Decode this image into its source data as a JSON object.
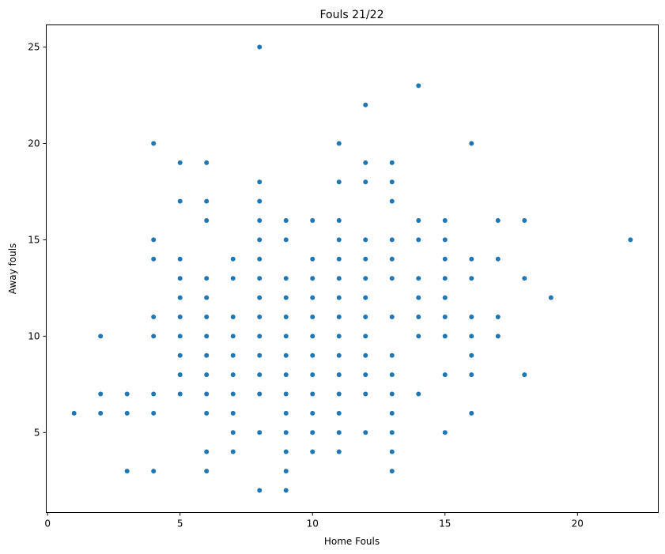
{
  "chart_data": {
    "type": "scatter",
    "title": "Fouls 21/22",
    "xlabel": "Home Fouls",
    "ylabel": "Away fouls",
    "xlim": [
      -0.05,
      23.05
    ],
    "ylim": [
      0.85,
      26.15
    ],
    "xticks": [
      0,
      5,
      10,
      15,
      20
    ],
    "yticks": [
      5,
      10,
      15,
      20,
      25
    ],
    "grid": false,
    "marker_color": "#1f77b4",
    "points": [
      [
        1,
        6
      ],
      [
        2,
        10
      ],
      [
        2,
        7
      ],
      [
        2,
        6
      ],
      [
        3,
        7
      ],
      [
        3,
        6
      ],
      [
        3,
        3
      ],
      [
        4,
        20
      ],
      [
        4,
        15
      ],
      [
        4,
        14
      ],
      [
        4,
        11
      ],
      [
        4,
        10
      ],
      [
        4,
        7
      ],
      [
        4,
        6
      ],
      [
        4,
        3
      ],
      [
        5,
        19
      ],
      [
        5,
        17
      ],
      [
        5,
        14
      ],
      [
        5,
        13
      ],
      [
        5,
        12
      ],
      [
        5,
        11
      ],
      [
        5,
        10
      ],
      [
        5,
        9
      ],
      [
        5,
        8
      ],
      [
        5,
        7
      ],
      [
        6,
        19
      ],
      [
        6,
        17
      ],
      [
        6,
        16
      ],
      [
        6,
        13
      ],
      [
        6,
        12
      ],
      [
        6,
        11
      ],
      [
        6,
        10
      ],
      [
        6,
        9
      ],
      [
        6,
        8
      ],
      [
        6,
        7
      ],
      [
        6,
        6
      ],
      [
        6,
        4
      ],
      [
        6,
        3
      ],
      [
        7,
        14
      ],
      [
        7,
        13
      ],
      [
        7,
        11
      ],
      [
        7,
        10
      ],
      [
        7,
        9
      ],
      [
        7,
        8
      ],
      [
        7,
        7
      ],
      [
        7,
        6
      ],
      [
        7,
        5
      ],
      [
        7,
        4
      ],
      [
        8,
        25
      ],
      [
        8,
        18
      ],
      [
        8,
        17
      ],
      [
        8,
        16
      ],
      [
        8,
        15
      ],
      [
        8,
        14
      ],
      [
        8,
        13
      ],
      [
        8,
        12
      ],
      [
        8,
        11
      ],
      [
        8,
        10
      ],
      [
        8,
        9
      ],
      [
        8,
        8
      ],
      [
        8,
        7
      ],
      [
        8,
        5
      ],
      [
        8,
        2
      ],
      [
        9,
        16
      ],
      [
        9,
        15
      ],
      [
        9,
        13
      ],
      [
        9,
        12
      ],
      [
        9,
        11
      ],
      [
        9,
        10
      ],
      [
        9,
        9
      ],
      [
        9,
        8
      ],
      [
        9,
        7
      ],
      [
        9,
        6
      ],
      [
        9,
        5
      ],
      [
        9,
        4
      ],
      [
        9,
        3
      ],
      [
        9,
        2
      ],
      [
        10,
        16
      ],
      [
        10,
        14
      ],
      [
        10,
        13
      ],
      [
        10,
        12
      ],
      [
        10,
        11
      ],
      [
        10,
        10
      ],
      [
        10,
        9
      ],
      [
        10,
        8
      ],
      [
        10,
        7
      ],
      [
        10,
        6
      ],
      [
        10,
        5
      ],
      [
        10,
        4
      ],
      [
        11,
        20
      ],
      [
        11,
        18
      ],
      [
        11,
        16
      ],
      [
        11,
        15
      ],
      [
        11,
        14
      ],
      [
        11,
        13
      ],
      [
        11,
        12
      ],
      [
        11,
        11
      ],
      [
        11,
        10
      ],
      [
        11,
        9
      ],
      [
        11,
        8
      ],
      [
        11,
        7
      ],
      [
        11,
        6
      ],
      [
        11,
        5
      ],
      [
        11,
        4
      ],
      [
        12,
        22
      ],
      [
        12,
        19
      ],
      [
        12,
        18
      ],
      [
        12,
        15
      ],
      [
        12,
        14
      ],
      [
        12,
        13
      ],
      [
        12,
        12
      ],
      [
        12,
        11
      ],
      [
        12,
        10
      ],
      [
        12,
        9
      ],
      [
        12,
        8
      ],
      [
        12,
        7
      ],
      [
        12,
        5
      ],
      [
        13,
        19
      ],
      [
        13,
        18
      ],
      [
        13,
        17
      ],
      [
        13,
        15
      ],
      [
        13,
        14
      ],
      [
        13,
        13
      ],
      [
        13,
        11
      ],
      [
        13,
        9
      ],
      [
        13,
        8
      ],
      [
        13,
        7
      ],
      [
        13,
        6
      ],
      [
        13,
        5
      ],
      [
        13,
        4
      ],
      [
        13,
        3
      ],
      [
        14,
        23
      ],
      [
        14,
        16
      ],
      [
        14,
        15
      ],
      [
        14,
        13
      ],
      [
        14,
        12
      ],
      [
        14,
        11
      ],
      [
        14,
        10
      ],
      [
        14,
        7
      ],
      [
        15,
        16
      ],
      [
        15,
        15
      ],
      [
        15,
        14
      ],
      [
        15,
        13
      ],
      [
        15,
        12
      ],
      [
        15,
        11
      ],
      [
        15,
        10
      ],
      [
        15,
        8
      ],
      [
        15,
        5
      ],
      [
        16,
        20
      ],
      [
        16,
        14
      ],
      [
        16,
        13
      ],
      [
        16,
        11
      ],
      [
        16,
        10
      ],
      [
        16,
        9
      ],
      [
        16,
        8
      ],
      [
        16,
        6
      ],
      [
        17,
        16
      ],
      [
        17,
        14
      ],
      [
        17,
        11
      ],
      [
        17,
        10
      ],
      [
        18,
        16
      ],
      [
        18,
        13
      ],
      [
        18,
        8
      ],
      [
        19,
        12
      ],
      [
        22,
        15
      ]
    ]
  }
}
